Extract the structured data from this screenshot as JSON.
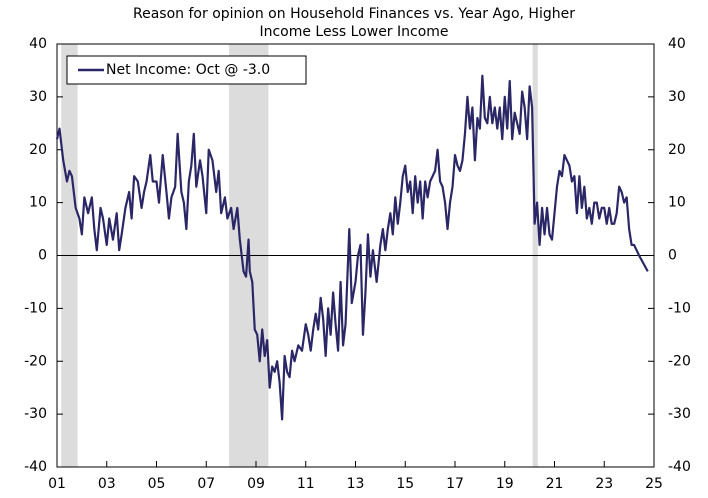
{
  "chart_data": {
    "type": "line",
    "title": [
      "Reason for opinion on Household Finances vs. Year Ago, Higher",
      "Income Less Lower Income"
    ],
    "x": [
      2001.0,
      2001.1,
      2001.25,
      2001.4,
      2001.5,
      2001.6,
      2001.75,
      2001.9,
      2002.0,
      2002.1,
      2002.25,
      2002.4,
      2002.5,
      2002.6,
      2002.75,
      2002.85,
      2003.0,
      2003.1,
      2003.25,
      2003.4,
      2003.5,
      2003.6,
      2003.75,
      2003.9,
      2004.0,
      2004.1,
      2004.25,
      2004.4,
      2004.5,
      2004.6,
      2004.75,
      2004.85,
      2005.0,
      2005.1,
      2005.25,
      2005.4,
      2005.5,
      2005.6,
      2005.75,
      2005.85,
      2006.0,
      2006.1,
      2006.2,
      2006.3,
      2006.4,
      2006.5,
      2006.6,
      2006.75,
      2006.85,
      2007.0,
      2007.1,
      2007.25,
      2007.4,
      2007.5,
      2007.6,
      2007.75,
      2007.85,
      2008.0,
      2008.1,
      2008.25,
      2008.35,
      2008.5,
      2008.6,
      2008.7,
      2008.75,
      2008.85,
      2008.95,
      2009.05,
      2009.15,
      2009.25,
      2009.35,
      2009.45,
      2009.55,
      2009.65,
      2009.75,
      2009.85,
      2009.95,
      2010.05,
      2010.15,
      2010.25,
      2010.35,
      2010.45,
      2010.55,
      2010.7,
      2010.85,
      2011.0,
      2011.1,
      2011.2,
      2011.3,
      2011.4,
      2011.5,
      2011.6,
      2011.7,
      2011.8,
      2011.9,
      2012.0,
      2012.1,
      2012.2,
      2012.3,
      2012.4,
      2012.5,
      2012.6,
      2012.75,
      2012.85,
      2013.0,
      2013.1,
      2013.2,
      2013.3,
      2013.4,
      2013.5,
      2013.6,
      2013.7,
      2013.85,
      2014.0,
      2014.1,
      2014.2,
      2014.3,
      2014.4,
      2014.5,
      2014.6,
      2014.7,
      2014.8,
      2014.9,
      2015.0,
      2015.1,
      2015.2,
      2015.3,
      2015.4,
      2015.5,
      2015.6,
      2015.7,
      2015.8,
      2015.9,
      2016.0,
      2016.1,
      2016.2,
      2016.3,
      2016.4,
      2016.5,
      2016.6,
      2016.7,
      2016.8,
      2016.9,
      2017.0,
      2017.1,
      2017.2,
      2017.3,
      2017.4,
      2017.5,
      2017.6,
      2017.7,
      2017.8,
      2017.9,
      2018.0,
      2018.1,
      2018.2,
      2018.3,
      2018.4,
      2018.5,
      2018.6,
      2018.7,
      2018.8,
      2018.9,
      2019.0,
      2019.1,
      2019.2,
      2019.3,
      2019.4,
      2019.5,
      2019.6,
      2019.7,
      2019.8,
      2019.9,
      2020.0,
      2020.1,
      2020.2,
      2020.3,
      2020.4,
      2020.5,
      2020.6,
      2020.7,
      2020.8,
      2020.9,
      2021.0,
      2021.1,
      2021.2,
      2021.3,
      2021.4,
      2021.5,
      2021.6,
      2021.7,
      2021.8,
      2021.9,
      2022.0,
      2022.1,
      2022.2,
      2022.3,
      2022.4,
      2022.5,
      2022.6,
      2022.7,
      2022.8,
      2022.9,
      2023.0,
      2023.1,
      2023.2,
      2023.3,
      2023.4,
      2023.5,
      2023.6,
      2023.7,
      2023.8,
      2023.9,
      2024.0,
      2024.1,
      2024.2,
      2024.3,
      2024.4,
      2024.75
    ],
    "series": [
      {
        "name": "Net Income: Oct @ -3.0",
        "color": "#2b2766",
        "values": [
          22,
          24,
          18,
          14,
          16,
          15,
          9,
          7,
          4,
          11,
          8,
          11,
          5,
          1,
          9,
          7,
          2,
          7,
          3,
          8,
          1,
          4,
          9,
          12,
          7,
          15,
          14,
          9,
          12,
          14,
          19,
          14,
          14,
          10,
          19,
          12,
          7,
          11,
          13,
          23,
          12,
          10,
          5,
          14,
          17,
          23,
          13,
          18,
          15,
          8,
          20,
          18,
          12,
          16,
          8,
          11,
          7,
          9,
          5,
          9,
          3,
          -3,
          -4,
          3,
          -3,
          -5,
          -14,
          -15,
          -20,
          -14,
          -19,
          -16,
          -25,
          -21,
          -22,
          -20,
          -24,
          -31,
          -19,
          -22,
          -23,
          -18,
          -20,
          -17,
          -18,
          -13,
          -15,
          -18,
          -14,
          -11,
          -14,
          -8,
          -12,
          -19,
          -10,
          -15,
          -7,
          -13,
          -18,
          -5,
          -17,
          -13,
          5,
          -9,
          -5,
          0,
          2,
          -15,
          -7,
          4,
          -4,
          1,
          -5,
          2,
          5,
          1,
          5,
          8,
          4,
          11,
          6,
          10,
          15,
          17,
          12,
          14,
          8,
          15,
          10,
          14,
          7,
          14,
          11,
          14,
          15,
          16,
          20,
          14,
          13,
          10,
          5,
          10,
          13,
          19,
          17,
          16,
          18,
          23,
          30,
          24,
          28,
          18,
          26,
          24,
          34,
          26,
          25,
          30,
          25,
          28,
          24,
          28,
          22,
          30,
          24,
          33,
          22,
          27,
          25,
          23,
          31,
          28,
          22,
          32,
          28,
          6,
          10,
          2,
          9,
          4,
          9,
          4,
          3,
          8,
          13,
          16,
          15,
          19,
          18,
          17,
          14,
          15,
          8,
          15,
          9,
          13,
          7,
          9,
          6,
          10,
          10,
          7,
          9,
          9,
          6,
          9,
          6,
          6,
          8,
          13,
          12,
          10,
          11,
          5,
          2,
          2,
          1,
          0,
          -3
        ]
      }
    ],
    "recessions": [
      [
        2001.17,
        2001.83
      ],
      [
        2007.92,
        2009.5
      ],
      [
        2020.12,
        2020.33
      ]
    ],
    "xlim": [
      2001,
      2025
    ],
    "xticks": [
      {
        "value": 2001,
        "label": "01"
      },
      {
        "value": 2003,
        "label": "03"
      },
      {
        "value": 2005,
        "label": "05"
      },
      {
        "value": 2007,
        "label": "07"
      },
      {
        "value": 2009,
        "label": "09"
      },
      {
        "value": 2011,
        "label": "11"
      },
      {
        "value": 2013,
        "label": "13"
      },
      {
        "value": 2015,
        "label": "15"
      },
      {
        "value": 2017,
        "label": "17"
      },
      {
        "value": 2019,
        "label": "19"
      },
      {
        "value": 2021,
        "label": "21"
      },
      {
        "value": 2023,
        "label": "23"
      },
      {
        "value": 2025,
        "label": "25"
      }
    ],
    "ylim": [
      -40,
      40
    ],
    "yticks": [
      -40,
      -30,
      -20,
      -10,
      0,
      10,
      20,
      30,
      40
    ],
    "y2lim": [
      -40,
      40
    ],
    "y2ticks": [
      -40,
      -30,
      -20,
      -10,
      0,
      10,
      20,
      30,
      40
    ],
    "legend": "upper left"
  }
}
